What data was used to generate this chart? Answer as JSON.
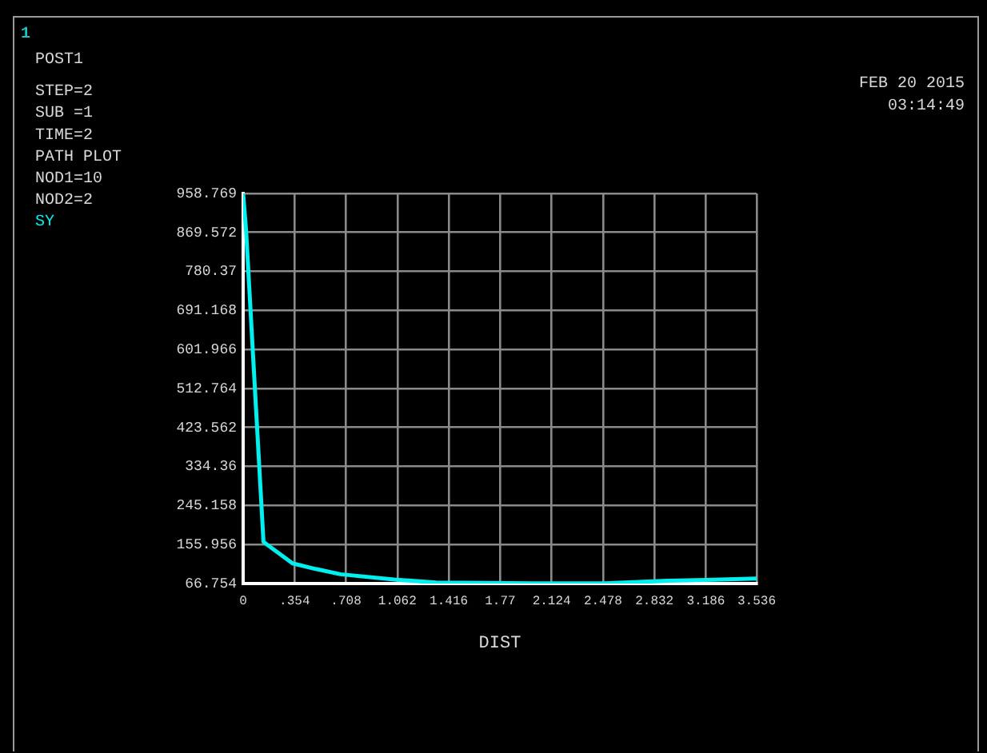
{
  "chart_data": {
    "type": "line",
    "xlabel": "DIST",
    "annotations": [
      "1",
      "POST1",
      "STEP=2",
      "SUB =1",
      "TIME=2",
      "PATH PLOT",
      "NOD1=10",
      "NOD2=2",
      "FEB 20 2015",
      "03:14:49"
    ],
    "x": [
      0,
      0.02,
      0.14,
      0.34,
      0.5,
      0.67,
      1.04,
      1.33,
      2.0,
      2.48,
      2.92,
      3.186,
      3.536
    ],
    "series": [
      {
        "name": "SY",
        "color": "#00f0f0",
        "values": [
          958,
          875,
          162,
          113,
          100,
          88,
          76,
          69,
          67,
          67,
          73,
          75,
          78
        ]
      }
    ],
    "xlim": [
      0,
      3.536
    ],
    "xticks": [
      0,
      {
        "value": 0.354,
        "label": ".354"
      },
      {
        "value": 0.708,
        "label": ".708"
      },
      1.062,
      1.416,
      1.77,
      2.124,
      2.478,
      2.832,
      3.186,
      3.536
    ],
    "ylim": [
      66.754,
      958.769
    ],
    "yticks": [
      66.754,
      155.956,
      245.158,
      334.36,
      423.562,
      512.764,
      601.966,
      691.168,
      780.37,
      869.572,
      958.769
    ],
    "grid": true,
    "marker": "none",
    "line_style": "solid"
  }
}
